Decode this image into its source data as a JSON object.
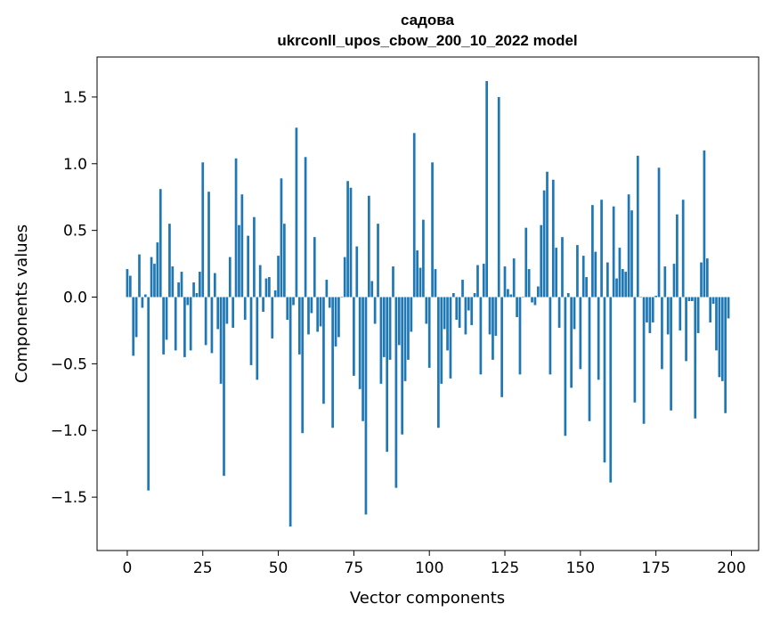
{
  "chart_data": {
    "type": "bar",
    "title": "садова",
    "subtitle": "ukrconll_upos_cbow_200_10_2022 model",
    "xlabel": "Vector components",
    "ylabel": "Components values",
    "xlim": [
      -10,
      209
    ],
    "ylim": [
      -1.9,
      1.8
    ],
    "xticks": [
      0,
      25,
      50,
      75,
      100,
      125,
      150,
      175,
      200
    ],
    "yticks": [
      -1.5,
      -1.0,
      -0.5,
      0.0,
      0.5,
      1.0,
      1.5
    ],
    "ytick_labels": [
      "−1.5",
      "−1.0",
      "−0.5",
      "0.0",
      "0.5",
      "1.0",
      "1.5"
    ],
    "bar_color": "#1f77b4",
    "grid": false,
    "x": [
      0,
      1,
      2,
      3,
      4,
      5,
      6,
      7,
      8,
      9,
      10,
      11,
      12,
      13,
      14,
      15,
      16,
      17,
      18,
      19,
      20,
      21,
      22,
      23,
      24,
      25,
      26,
      27,
      28,
      29,
      30,
      31,
      32,
      33,
      34,
      35,
      36,
      37,
      38,
      39,
      40,
      41,
      42,
      43,
      44,
      45,
      46,
      47,
      48,
      49,
      50,
      51,
      52,
      53,
      54,
      55,
      56,
      57,
      58,
      59,
      60,
      61,
      62,
      63,
      64,
      65,
      66,
      67,
      68,
      69,
      70,
      71,
      72,
      73,
      74,
      75,
      76,
      77,
      78,
      79,
      80,
      81,
      82,
      83,
      84,
      85,
      86,
      87,
      88,
      89,
      90,
      91,
      92,
      93,
      94,
      95,
      96,
      97,
      98,
      99,
      100,
      101,
      102,
      103,
      104,
      105,
      106,
      107,
      108,
      109,
      110,
      111,
      112,
      113,
      114,
      115,
      116,
      117,
      118,
      119,
      120,
      121,
      122,
      123,
      124,
      125,
      126,
      127,
      128,
      129,
      130,
      131,
      132,
      133,
      134,
      135,
      136,
      137,
      138,
      139,
      140,
      141,
      142,
      143,
      144,
      145,
      146,
      147,
      148,
      149,
      150,
      151,
      152,
      153,
      154,
      155,
      156,
      157,
      158,
      159,
      160,
      161,
      162,
      163,
      164,
      165,
      166,
      167,
      168,
      169,
      170,
      171,
      172,
      173,
      174,
      175,
      176,
      177,
      178,
      179,
      180,
      181,
      182,
      183,
      184,
      185,
      186,
      187,
      188,
      189,
      190,
      191,
      192,
      193,
      194,
      195,
      196,
      197,
      198,
      199
    ],
    "values": [
      0.21,
      0.16,
      -0.44,
      -0.3,
      0.32,
      -0.08,
      0.02,
      -1.45,
      0.3,
      0.25,
      0.41,
      0.81,
      -0.43,
      -0.32,
      0.55,
      0.23,
      -0.4,
      0.11,
      0.19,
      -0.45,
      -0.06,
      -0.4,
      0.11,
      0.03,
      0.19,
      1.01,
      -0.36,
      0.79,
      -0.42,
      0.18,
      -0.24,
      -0.65,
      -1.34,
      -0.2,
      0.3,
      -0.23,
      1.04,
      0.54,
      0.77,
      -0.17,
      0.46,
      -0.51,
      0.6,
      -0.62,
      0.24,
      -0.11,
      0.14,
      0.15,
      -0.31,
      0.05,
      0.31,
      0.89,
      0.55,
      -0.17,
      -1.72,
      -0.06,
      1.27,
      -0.43,
      -1.02,
      1.05,
      -0.28,
      -0.12,
      0.45,
      -0.26,
      -0.22,
      -0.8,
      0.13,
      -0.08,
      -0.98,
      -0.37,
      -0.3,
      0.0,
      0.3,
      0.87,
      0.82,
      -0.59,
      0.38,
      -0.69,
      -0.93,
      -1.63,
      0.76,
      0.12,
      -0.2,
      0.55,
      -0.65,
      -0.45,
      -1.16,
      -0.47,
      0.23,
      -1.43,
      -0.36,
      -1.03,
      -0.63,
      -0.47,
      -0.26,
      1.23,
      0.35,
      0.22,
      0.58,
      -0.2,
      -0.53,
      1.01,
      0.21,
      -0.98,
      -0.65,
      -0.24,
      -0.4,
      -0.61,
      0.03,
      -0.17,
      -0.23,
      0.13,
      -0.28,
      -0.1,
      -0.21,
      0.03,
      0.24,
      -0.58,
      0.25,
      1.62,
      -0.28,
      -0.47,
      -0.29,
      1.5,
      -0.75,
      0.23,
      0.06,
      0.02,
      0.29,
      -0.15,
      -0.58,
      0.0,
      0.52,
      0.21,
      -0.04,
      -0.06,
      0.08,
      0.54,
      0.8,
      0.94,
      -0.58,
      0.88,
      0.37,
      -0.23,
      0.45,
      -1.04,
      0.03,
      -0.68,
      -0.24,
      0.39,
      -0.54,
      0.31,
      0.15,
      -0.93,
      0.69,
      0.34,
      -0.62,
      0.73,
      -1.24,
      0.26,
      -1.39,
      0.68,
      0.14,
      0.37,
      0.21,
      0.19,
      0.77,
      0.65,
      -0.79,
      1.06,
      0.0,
      -0.95,
      -0.19,
      -0.27,
      -0.19,
      0.01,
      0.97,
      -0.54,
      0.23,
      -0.28,
      -0.85,
      0.25,
      0.62,
      -0.25,
      0.73,
      -0.48,
      -0.03,
      -0.03,
      -0.91,
      -0.27,
      0.26,
      1.1,
      0.29,
      -0.19,
      -0.05,
      -0.4,
      -0.6,
      -0.63,
      -0.87,
      -0.16
    ]
  }
}
